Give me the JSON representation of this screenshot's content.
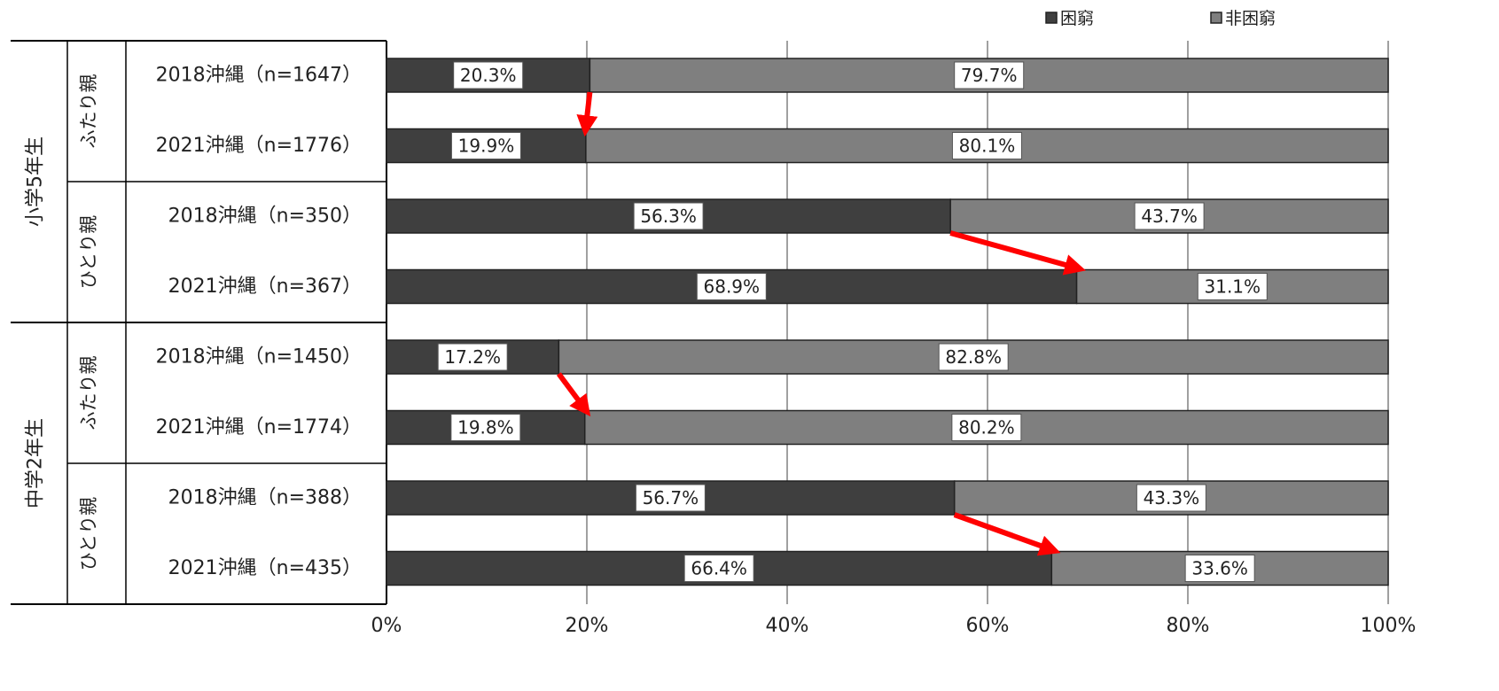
{
  "chart_data": {
    "type": "bar",
    "orientation": "horizontal",
    "stacked": true,
    "xlim": [
      0,
      100
    ],
    "x_ticks": [
      "0%",
      "20%",
      "40%",
      "60%",
      "80%",
      "100%"
    ],
    "legend_position": "top-right",
    "legend": [
      {
        "name": "困窮",
        "color": "#3f3f3f"
      },
      {
        "name": "非困窮",
        "color": "#7f7f7f"
      }
    ],
    "groups": [
      {
        "label": "小学5年生",
        "subgroups": [
          {
            "label": "ふたり親",
            "rows": [
              0,
              1
            ]
          },
          {
            "label": "ひとり親",
            "rows": [
              2,
              3
            ]
          }
        ]
      },
      {
        "label": "中学2年生",
        "subgroups": [
          {
            "label": "ふたり親",
            "rows": [
              4,
              5
            ]
          },
          {
            "label": "ひとり親",
            "rows": [
              6,
              7
            ]
          }
        ]
      }
    ],
    "categories": [
      "2018沖縄（n=1647）",
      "2021沖縄（n=1776）",
      "2018沖縄（n=350）",
      "2021沖縄（n=367）",
      "2018沖縄（n=1450）",
      "2021沖縄（n=1774）",
      "2018沖縄（n=388）",
      "2021沖縄（n=435）"
    ],
    "series": [
      {
        "name": "困窮",
        "values": [
          20.3,
          19.9,
          56.3,
          68.9,
          17.2,
          19.8,
          56.7,
          66.4
        ],
        "labels": [
          "20.3%",
          "19.9%",
          "56.3%",
          "68.9%",
          "17.2%",
          "19.8%",
          "56.7%",
          "66.4%"
        ]
      },
      {
        "name": "非困窮",
        "values": [
          79.7,
          80.1,
          43.7,
          31.1,
          82.8,
          80.2,
          43.3,
          33.6
        ],
        "labels": [
          "79.7%",
          "80.1%",
          "43.7%",
          "31.1%",
          "82.8%",
          "80.2%",
          "43.3%",
          "33.6%"
        ]
      }
    ],
    "arrows": [
      {
        "from_row": 0,
        "to_row": 1,
        "color": "#ff0000"
      },
      {
        "from_row": 2,
        "to_row": 3,
        "color": "#ff0000"
      },
      {
        "from_row": 4,
        "to_row": 5,
        "color": "#ff0000"
      },
      {
        "from_row": 6,
        "to_row": 7,
        "color": "#ff0000"
      }
    ],
    "grid": true
  }
}
